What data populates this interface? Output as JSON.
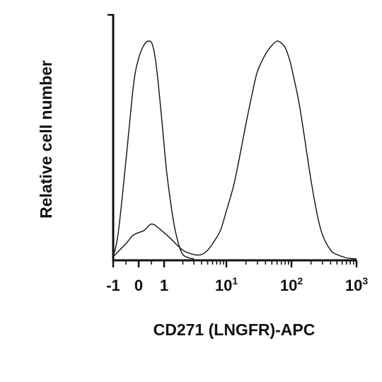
{
  "chart_data": {
    "type": "line",
    "title": "",
    "xlabel": "CD271 (LNGFR)-APC",
    "ylabel": "Relative cell number",
    "x_scale": "biexponential",
    "xlim": [
      -1,
      1000
    ],
    "ylim": [
      0,
      1
    ],
    "grid": false,
    "legend": "none",
    "x_tick_labels": [
      {
        "value": -1,
        "text": "-1"
      },
      {
        "value": 0,
        "text": "0"
      },
      {
        "value": 1,
        "text": "1"
      },
      {
        "value": 10,
        "base": "10",
        "exp": "1"
      },
      {
        "value": 100,
        "base": "10",
        "exp": "2"
      },
      {
        "value": 1000,
        "base": "10",
        "exp": "3"
      }
    ],
    "series": [
      {
        "color": "#111111",
        "x": [
          -1,
          -0.8,
          -0.5,
          -0.2,
          0,
          0.2,
          0.4,
          0.55,
          0.7,
          0.9,
          1.1,
          1.4,
          1.7,
          2.0,
          2.5,
          3
        ],
        "y": [
          0.01,
          0.12,
          0.45,
          0.8,
          0.92,
          0.98,
          1.0,
          0.98,
          0.88,
          0.65,
          0.4,
          0.18,
          0.07,
          0.02,
          0.005,
          0
        ]
      },
      {
        "color": "#111111",
        "x": [
          -1,
          -0.5,
          -0.2,
          0.2,
          0.5,
          0.8,
          1.2,
          2,
          3,
          4,
          5,
          6,
          8,
          10,
          13,
          16,
          20,
          25,
          30,
          40,
          50,
          60,
          70,
          80,
          90,
          100,
          130,
          160,
          200,
          250,
          300,
          400,
          500,
          700,
          1000
        ],
        "y": [
          0.01,
          0.07,
          0.11,
          0.13,
          0.16,
          0.14,
          0.1,
          0.04,
          0.02,
          0.02,
          0.04,
          0.07,
          0.13,
          0.22,
          0.34,
          0.47,
          0.62,
          0.76,
          0.86,
          0.94,
          0.98,
          1.0,
          0.99,
          0.97,
          0.93,
          0.88,
          0.72,
          0.55,
          0.36,
          0.2,
          0.11,
          0.04,
          0.02,
          0.005,
          0
        ]
      }
    ]
  }
}
